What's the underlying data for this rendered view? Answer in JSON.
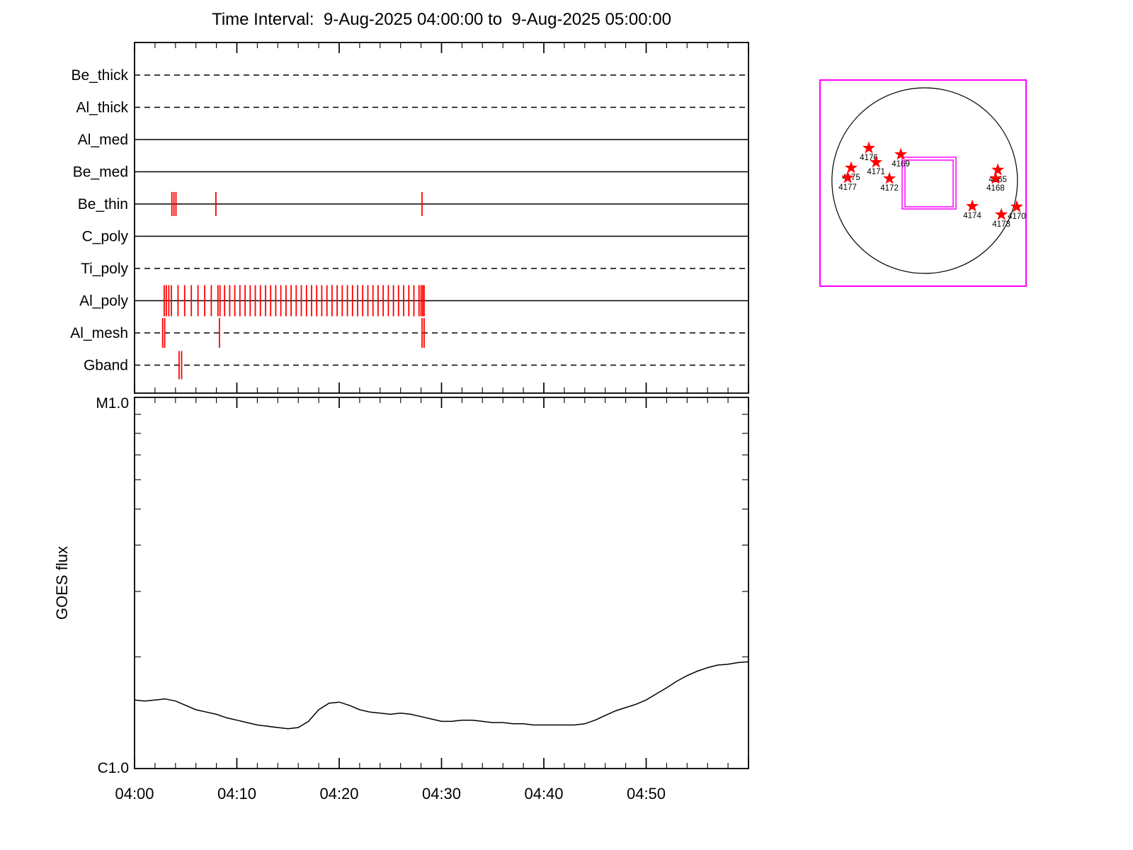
{
  "colors": {
    "line": "#000000",
    "exposure_tick": "#ff0000",
    "star": "#ff0000",
    "map_border": "#ff00ff",
    "background": "#ffffff"
  },
  "chart_data": [
    {
      "name": "goes_flux",
      "type": "line",
      "title": "Time Interval:  9-Aug-2025 04:00:00 to  9-Aug-2025 05:00:00",
      "xlabel": "",
      "ylabel": "GOES flux",
      "y_scale": "log",
      "y_bottom_label": "C1.0",
      "y_top_label": "M1.0",
      "ylim_c_units": [
        1,
        10
      ],
      "grid": false,
      "x_unit": "minutes after 2025-08-09 04:00:00 UT",
      "x_tick_labels": [
        "04:00",
        "04:10",
        "04:20",
        "04:30",
        "04:40",
        "04:50"
      ],
      "x_tick_minutes": [
        0,
        10,
        20,
        30,
        40,
        50
      ],
      "x": [
        0,
        1,
        2,
        3,
        4,
        5,
        6,
        7,
        8,
        9,
        10,
        11,
        12,
        13,
        14,
        15,
        16,
        17,
        18,
        19,
        20,
        21,
        22,
        23,
        24,
        25,
        26,
        27,
        28,
        29,
        30,
        31,
        32,
        33,
        34,
        35,
        36,
        37,
        38,
        39,
        40,
        41,
        42,
        43,
        44,
        45,
        46,
        47,
        48,
        49,
        50,
        51,
        52,
        53,
        54,
        55,
        56,
        57,
        58,
        59,
        60
      ],
      "values_c_units": [
        1.53,
        1.52,
        1.53,
        1.54,
        1.52,
        1.48,
        1.44,
        1.42,
        1.4,
        1.37,
        1.35,
        1.33,
        1.31,
        1.3,
        1.29,
        1.28,
        1.29,
        1.34,
        1.44,
        1.5,
        1.51,
        1.48,
        1.44,
        1.42,
        1.41,
        1.4,
        1.41,
        1.4,
        1.38,
        1.36,
        1.34,
        1.34,
        1.35,
        1.35,
        1.34,
        1.33,
        1.33,
        1.32,
        1.32,
        1.31,
        1.31,
        1.31,
        1.31,
        1.31,
        1.32,
        1.35,
        1.39,
        1.43,
        1.46,
        1.49,
        1.53,
        1.59,
        1.65,
        1.72,
        1.78,
        1.83,
        1.87,
        1.9,
        1.91,
        1.93,
        1.94
      ]
    },
    {
      "name": "xrt_filter_exposures",
      "type": "event-timeline",
      "x_unit": "minutes after 2025-08-09 04:00:00 UT",
      "rows": [
        {
          "label": "Be_thick",
          "line_style": "dashed",
          "exposure_times": []
        },
        {
          "label": "Al_thick",
          "line_style": "dashed",
          "exposure_times": []
        },
        {
          "label": "Al_med",
          "line_style": "solid",
          "exposure_times": []
        },
        {
          "label": "Be_med",
          "line_style": "solid",
          "exposure_times": []
        },
        {
          "label": "Be_thin",
          "line_style": "solid",
          "exposure_times": [
            3.65,
            3.85,
            4.05,
            7.95,
            28.1
          ]
        },
        {
          "label": "C_poly",
          "line_style": "solid",
          "exposure_times": []
        },
        {
          "label": "Ti_poly",
          "line_style": "dashed",
          "exposure_times": []
        },
        {
          "label": "Al_poly",
          "line_style": "solid",
          "exposure_times": [
            2.9,
            3.1,
            3.35,
            3.6,
            4.25,
            4.9,
            5.55,
            6.2,
            6.85,
            7.5,
            8.15,
            8.35,
            8.8,
            9.3,
            9.8,
            10.3,
            10.8,
            11.3,
            11.8,
            12.3,
            12.8,
            13.3,
            13.8,
            14.3,
            14.8,
            15.3,
            15.8,
            16.3,
            16.8,
            17.3,
            17.8,
            18.3,
            18.8,
            19.3,
            19.8,
            20.3,
            20.8,
            21.3,
            21.8,
            22.3,
            22.8,
            23.3,
            23.8,
            24.3,
            24.8,
            25.3,
            25.8,
            26.3,
            26.8,
            27.3,
            27.8,
            28.0,
            28.15,
            28.3
          ]
        },
        {
          "label": "Al_mesh",
          "line_style": "dashed",
          "exposure_times": [
            2.75,
            2.95,
            8.3,
            28.1,
            28.3
          ]
        },
        {
          "label": "Gband",
          "line_style": "dashed",
          "exposure_times": [
            4.35,
            4.6
          ]
        }
      ]
    },
    {
      "name": "solar_disk_map",
      "type": "scatter",
      "marker": "star",
      "active_regions": [
        {
          "noaa": "4176",
          "fx": 0.237,
          "fy": 0.33
        },
        {
          "noaa": "4169",
          "fx": 0.392,
          "fy": 0.361
        },
        {
          "noaa": "4171",
          "fx": 0.272,
          "fy": 0.399
        },
        {
          "noaa": "4175",
          "fx": 0.151,
          "fy": 0.426
        },
        {
          "noaa": "4177",
          "fx": 0.134,
          "fy": 0.474
        },
        {
          "noaa": "4172",
          "fx": 0.337,
          "fy": 0.478
        },
        {
          "noaa": "4165",
          "fx": 0.863,
          "fy": 0.436
        },
        {
          "noaa": "4168",
          "fx": 0.852,
          "fy": 0.478
        },
        {
          "noaa": "4174",
          "fx": 0.739,
          "fy": 0.612
        },
        {
          "noaa": "4170",
          "fx": 0.955,
          "fy": 0.615
        },
        {
          "noaa": "4173",
          "fx": 0.88,
          "fy": 0.653
        }
      ]
    }
  ]
}
